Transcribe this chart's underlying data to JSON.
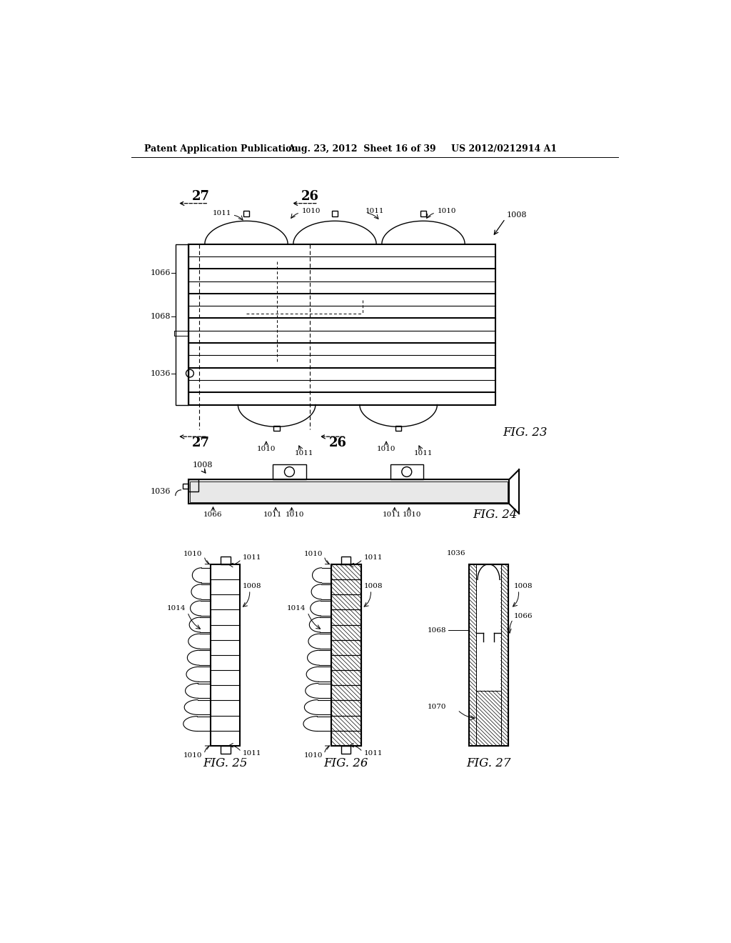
{
  "bg_color": "#ffffff",
  "header_left": "Patent Application Publication",
  "header_mid": "Aug. 23, 2012  Sheet 16 of 39",
  "header_right": "US 2012/0212914 A1"
}
